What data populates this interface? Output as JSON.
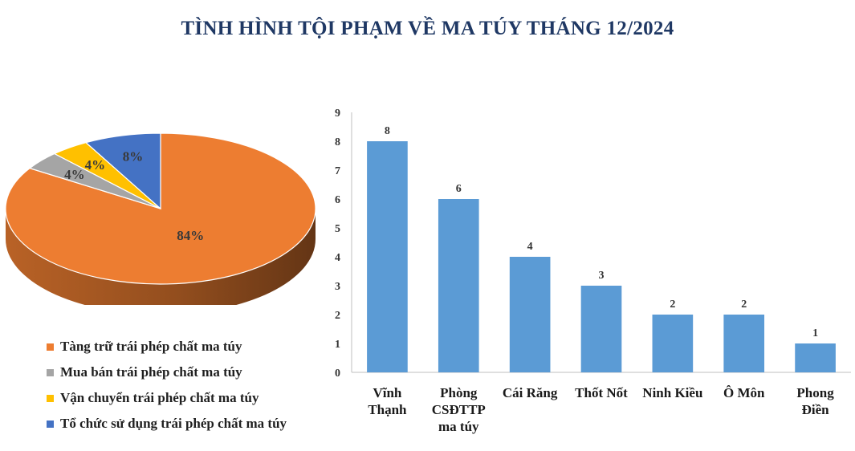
{
  "title": "TÌNH HÌNH TỘI PHẠM VỀ MA TÚY THÁNG 12/2024",
  "chart_data": [
    {
      "type": "pie",
      "slices": [
        {
          "label": "Tàng trữ trái phép chất ma túy",
          "value": 84,
          "display": "84%",
          "color": "#ED7D31"
        },
        {
          "label": "Mua bán trái phép chất ma túy",
          "value": 4,
          "display": "4%",
          "color": "#A5A5A5"
        },
        {
          "label": "Vận chuyển trái phép chất ma túy",
          "value": 4,
          "display": "4%",
          "color": "#FFC000"
        },
        {
          "label": "Tổ chức sử dụng trái phép chất ma túy",
          "value": 8,
          "display": "8%",
          "color": "#4472C4"
        }
      ],
      "style": "3d",
      "legend_position": "bottom-left"
    },
    {
      "type": "bar",
      "categories": [
        "Vĩnh Thạnh",
        "Phòng CSĐTTP ma túy",
        "Cái Răng",
        "Thốt Nốt",
        "Ninh Kiều",
        "Ô Môn",
        "Phong Điền"
      ],
      "category_lines": [
        [
          "Vĩnh",
          "Thạnh"
        ],
        [
          "Phòng",
          "CSĐTTP",
          "ma túy"
        ],
        [
          "Cái Răng"
        ],
        [
          "Thốt Nốt"
        ],
        [
          "Ninh Kiều"
        ],
        [
          "Ô Môn"
        ],
        [
          "Phong",
          "Điền"
        ]
      ],
      "values": [
        8,
        6,
        4,
        3,
        2,
        2,
        1
      ],
      "ylim": [
        0,
        9
      ],
      "yticks": [
        0,
        1,
        2,
        3,
        4,
        5,
        6,
        7,
        8,
        9
      ],
      "bar_color": "#5B9BD5",
      "data_labels": true,
      "grid": false
    }
  ]
}
